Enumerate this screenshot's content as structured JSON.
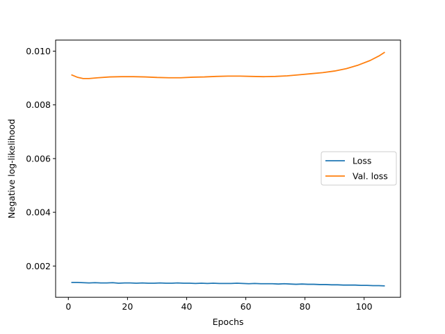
{
  "chart_data": {
    "type": "line",
    "title": "",
    "xlabel": "Epochs",
    "ylabel": "Negative log-likelihood",
    "xlim": [
      -4.3,
      112.3
    ],
    "ylim": [
      0.000837,
      0.010412
    ],
    "xticks": [
      0,
      20,
      40,
      60,
      80,
      100
    ],
    "xtick_labels": [
      "0",
      "20",
      "40",
      "60",
      "80",
      "100"
    ],
    "yticks": [
      0.002,
      0.004,
      0.006,
      0.008,
      0.01
    ],
    "ytick_labels": [
      "0.002",
      "0.004",
      "0.006",
      "0.008",
      "0.010"
    ],
    "grid": false,
    "legend_position": "center-right",
    "series": [
      {
        "name": "Loss",
        "color": "#1f77b4",
        "x": [
          1,
          3,
          5,
          7,
          9,
          11,
          13,
          15,
          17,
          19,
          21,
          23,
          25,
          27,
          29,
          31,
          33,
          35,
          37,
          39,
          41,
          43,
          45,
          47,
          49,
          51,
          53,
          55,
          57,
          59,
          61,
          63,
          65,
          67,
          69,
          71,
          73,
          75,
          77,
          79,
          81,
          83,
          85,
          87,
          89,
          91,
          93,
          95,
          97,
          99,
          101,
          103,
          105,
          107
        ],
        "y": [
          0.00139,
          0.00139,
          0.00138,
          0.00137,
          0.00138,
          0.00137,
          0.00137,
          0.00138,
          0.00136,
          0.00137,
          0.00137,
          0.00136,
          0.00137,
          0.00136,
          0.00136,
          0.00137,
          0.00136,
          0.00136,
          0.00137,
          0.00136,
          0.00136,
          0.00135,
          0.00136,
          0.00135,
          0.00136,
          0.00135,
          0.00135,
          0.00135,
          0.00136,
          0.00135,
          0.00134,
          0.00135,
          0.00134,
          0.00134,
          0.00134,
          0.00133,
          0.00134,
          0.00133,
          0.00132,
          0.00133,
          0.00132,
          0.00132,
          0.00131,
          0.00131,
          0.0013,
          0.0013,
          0.00129,
          0.00129,
          0.00129,
          0.00128,
          0.00128,
          0.00127,
          0.00127,
          0.00126
        ]
      },
      {
        "name": "Val. loss",
        "color": "#ff7f0e",
        "x": [
          1,
          3,
          5,
          7,
          10,
          14,
          18,
          22,
          26,
          30,
          34,
          38,
          42,
          46,
          50,
          54,
          58,
          62,
          66,
          70,
          74,
          78,
          82,
          86,
          90,
          94,
          98,
          102,
          105,
          107
        ],
        "y": [
          0.00912,
          0.00903,
          0.00898,
          0.00898,
          0.00901,
          0.00904,
          0.00905,
          0.00905,
          0.00904,
          0.00902,
          0.00901,
          0.00901,
          0.00903,
          0.00904,
          0.00906,
          0.00907,
          0.00907,
          0.00906,
          0.00905,
          0.00906,
          0.00908,
          0.00912,
          0.00916,
          0.0092,
          0.00926,
          0.00935,
          0.00948,
          0.00965,
          0.00982,
          0.00996
        ]
      }
    ]
  }
}
